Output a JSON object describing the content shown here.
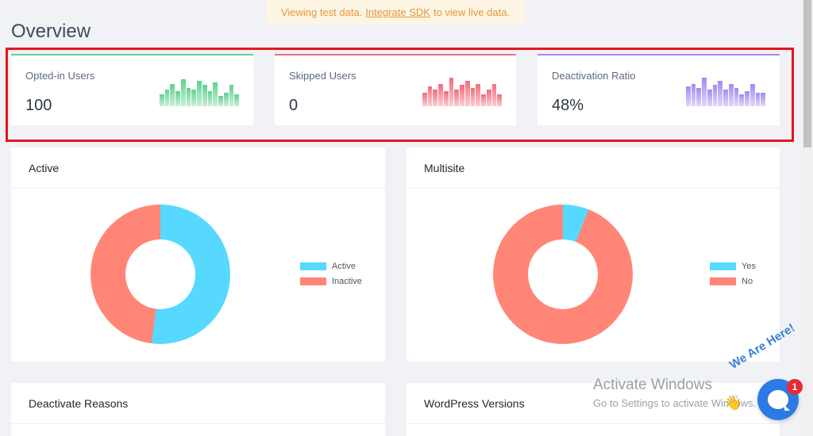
{
  "notice": {
    "prefix": "Viewing test data.",
    "link": "Integrate SDK",
    "suffix": "to view live data."
  },
  "page": {
    "title": "Overview"
  },
  "stats": [
    {
      "label": "Opted-in Users",
      "value": "100",
      "color": "#5ed28f",
      "bars": [
        0.4,
        0.55,
        0.75,
        0.5,
        0.9,
        0.6,
        0.55,
        0.85,
        0.7,
        0.5,
        0.8,
        0.35,
        0.45,
        0.7,
        0.4
      ]
    },
    {
      "label": "Skipped Users",
      "value": "0",
      "color": "#f36b7b",
      "bars": [
        0.45,
        0.65,
        0.55,
        0.75,
        0.5,
        0.95,
        0.55,
        0.7,
        0.85,
        0.6,
        0.75,
        0.4,
        0.55,
        0.75,
        0.4
      ]
    },
    {
      "label": "Deactivation Ratio",
      "value": "48%",
      "color": "#a48af0",
      "bars": [
        0.65,
        0.75,
        0.6,
        0.95,
        0.55,
        0.7,
        0.85,
        0.55,
        0.75,
        0.6,
        0.4,
        0.5,
        0.75,
        0.45,
        0.45
      ]
    }
  ],
  "charts": {
    "active": {
      "title": "Active",
      "segments": [
        {
          "label": "Active",
          "value": 52,
          "color": "#57d9ff"
        },
        {
          "label": "Inactive",
          "value": 48,
          "color": "#ff8676"
        }
      ]
    },
    "multisite": {
      "title": "Multisite",
      "segments": [
        {
          "label": "Yes",
          "value": 6,
          "color": "#57d9ff"
        },
        {
          "label": "No",
          "value": 94,
          "color": "#ff8676"
        }
      ]
    }
  },
  "sections": {
    "deactivate_reasons": "Deactivate Reasons",
    "wordpress_versions": "WordPress Versions"
  },
  "overlay": {
    "watermark_line1": "Activate Windows",
    "watermark_line2": "Go to Settings to activate Windows.",
    "chat_text": "We Are Here!",
    "chat_badge": "1"
  }
}
